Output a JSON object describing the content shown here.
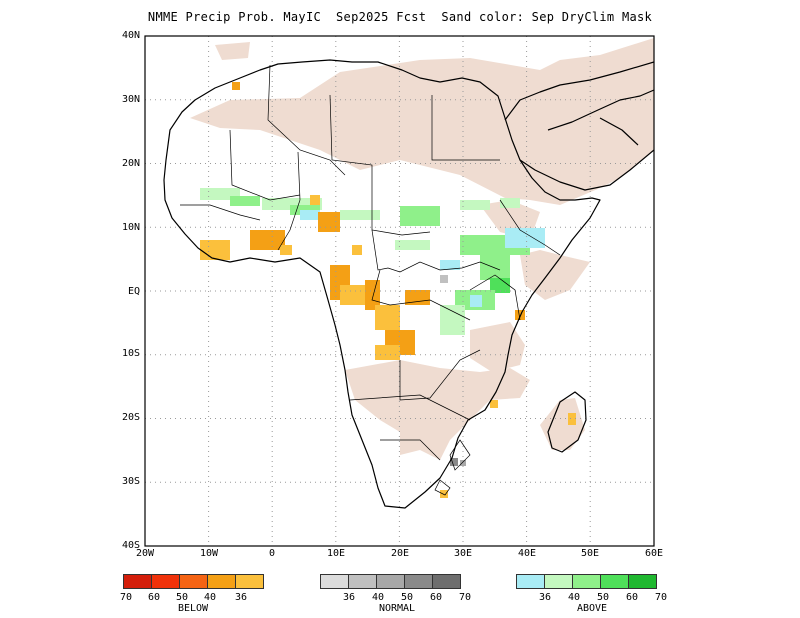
{
  "title": "NMME Precip Prob. MayIC  Sep2025 Fcst  Sand color: Sep DryClim Mask",
  "y_axis": [
    "40N",
    "30N",
    "20N",
    "10N",
    "EQ",
    "10S",
    "20S",
    "30S",
    "40S"
  ],
  "x_axis": [
    "20W",
    "10W",
    "0",
    "10E",
    "20E",
    "30E",
    "40E",
    "50E",
    "60E"
  ],
  "colors": {
    "sand": "#efdcd1",
    "coast": "#000000",
    "grid": "#9a9a9a",
    "below": [
      "#d41e0a",
      "#f0320a",
      "#f56414",
      "#f4a015",
      "#fbc03c"
    ],
    "normal": [
      "#dcdcdc",
      "#c0c0c0",
      "#a8a8a8",
      "#8a8a8a",
      "#6e6e6e"
    ],
    "above": [
      "#a9ecf5",
      "#c4f8c0",
      "#8ff08a",
      "#4fe05a",
      "#20b830"
    ]
  },
  "legend": {
    "below": {
      "label": "BELOW",
      "ticks": [
        "70",
        "60",
        "50",
        "40",
        "36"
      ]
    },
    "normal": {
      "label": "NORMAL",
      "ticks": [
        "36",
        "40",
        "50",
        "60",
        "70"
      ]
    },
    "above": {
      "label": "ABOVE",
      "ticks": [
        "36",
        "40",
        "50",
        "60",
        "70"
      ]
    }
  }
}
